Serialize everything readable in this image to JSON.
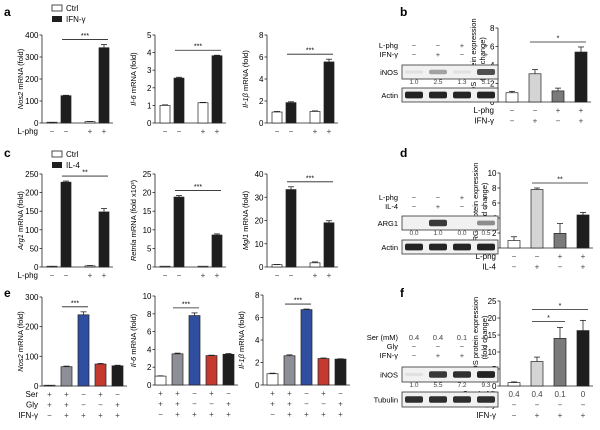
{
  "panels": {
    "a": {
      "letter": "a",
      "legend": [
        {
          "label": "Ctrl",
          "color": "#ffffff"
        },
        {
          "label": "IFN-γ",
          "color": "#1e1e1e"
        }
      ]
    },
    "b": {
      "letter": "b"
    },
    "c": {
      "letter": "c",
      "legend": [
        {
          "label": "Ctrl",
          "color": "#ffffff"
        },
        {
          "label": "IL-4",
          "color": "#1e1e1e"
        }
      ]
    },
    "d": {
      "letter": "d"
    },
    "e": {
      "letter": "e"
    },
    "f": {
      "letter": "f"
    }
  },
  "blots": {
    "b": {
      "cond_rows": [
        {
          "label": "L-phg",
          "vals": [
            "−",
            "−",
            "+",
            "+"
          ]
        },
        {
          "label": "IFN-γ",
          "vals": [
            "−",
            "+",
            "−",
            "+"
          ]
        }
      ],
      "bands": [
        {
          "label": "iNOS",
          "intensity": [
            0.05,
            0.35,
            0.05,
            0.75
          ]
        },
        {
          "label": "Actin",
          "intensity": [
            0.95,
            0.95,
            0.95,
            0.95
          ]
        }
      ],
      "quant": [
        "1.0",
        "2.5",
        "1.3",
        "5.1"
      ]
    },
    "d": {
      "cond_rows": [
        {
          "label": "L-phg",
          "vals": [
            "−",
            "−",
            "+",
            "+"
          ]
        },
        {
          "label": "IL-4",
          "vals": [
            "−",
            "+",
            "−",
            "+"
          ]
        }
      ],
      "bands": [
        {
          "label": "ARG1",
          "intensity": [
            0.0,
            0.85,
            0.0,
            0.45
          ]
        },
        {
          "label": "Actin",
          "intensity": [
            0.95,
            0.95,
            0.95,
            0.95
          ]
        }
      ],
      "quant": [
        "0.0",
        "1.0",
        "0.0",
        "0.5"
      ]
    },
    "f": {
      "cond_rows": [
        {
          "label": "Ser (mM)",
          "vals": [
            "0.4",
            "0.4",
            "0.1",
            "0"
          ]
        },
        {
          "label": "Gly",
          "vals": [
            "−",
            "−",
            "−",
            "−"
          ]
        },
        {
          "label": "IFN-γ",
          "vals": [
            "−",
            "+",
            "+",
            "+"
          ]
        }
      ],
      "bands": [
        {
          "label": "iNOS",
          "intensity": [
            0.05,
            0.85,
            0.9,
            0.95
          ]
        },
        {
          "label": "Tubulin",
          "intensity": [
            0.9,
            0.9,
            0.9,
            0.9
          ]
        }
      ],
      "quant": [
        "1.0",
        "5.5",
        "7.2",
        "9.3"
      ]
    }
  },
  "chart_data": [
    {
      "id": "a1",
      "panel": "a",
      "type": "bar",
      "ylabel": "Nos2 mRNA (fold)",
      "ylabel_italic": "Nos2",
      "ylabel_rest": " mRNA (fold)",
      "ylim": [
        0,
        400
      ],
      "ticks": [
        0,
        100,
        200,
        300,
        400
      ],
      "values": [
        1,
        124,
        6,
        342
      ],
      "errors": [
        0.5,
        2,
        1,
        15
      ],
      "colors": [
        "#ffffff",
        "#1e1e1e",
        "#ffffff",
        "#1e1e1e"
      ],
      "cond_rows": [
        {
          "label": "L-phg",
          "vals": [
            "−",
            "−",
            "+",
            "+"
          ]
        }
      ],
      "sig": [
        {
          "from": 1,
          "to": 3,
          "label": "***"
        }
      ]
    },
    {
      "id": "a2",
      "panel": "a",
      "type": "bar",
      "ylabel": "Il-6 mRNA (fold)",
      "ylabel_italic": "Il-6",
      "ylabel_rest": " mRNA (fold)",
      "ylim": [
        0,
        5
      ],
      "ticks": [
        0,
        1,
        2,
        3,
        4,
        5
      ],
      "values": [
        1.0,
        2.55,
        1.15,
        3.82
      ],
      "errors": [
        0.03,
        0.05,
        0.02,
        0.03
      ],
      "colors": [
        "#ffffff",
        "#1e1e1e",
        "#ffffff",
        "#1e1e1e"
      ],
      "cond_rows": [
        {
          "label": "",
          "vals": [
            "−",
            "−",
            "+",
            "+"
          ]
        }
      ],
      "sig": [
        {
          "from": 1,
          "to": 3,
          "label": "***"
        }
      ]
    },
    {
      "id": "a3",
      "panel": "a",
      "type": "bar",
      "ylabel": "Il-1β mRNA (fold)",
      "ylabel_italic": "Il-1β",
      "ylabel_rest": " mRNA (fold)",
      "ylim": [
        0,
        8
      ],
      "ticks": [
        0,
        2,
        4,
        6,
        8
      ],
      "values": [
        1.0,
        1.85,
        1.05,
        5.55
      ],
      "errors": [
        0.05,
        0.08,
        0.05,
        0.25
      ],
      "colors": [
        "#ffffff",
        "#1e1e1e",
        "#ffffff",
        "#1e1e1e"
      ],
      "cond_rows": [
        {
          "label": "",
          "vals": [
            "−",
            "−",
            "+",
            "+"
          ]
        }
      ],
      "sig": [
        {
          "from": 1,
          "to": 3,
          "label": "***"
        }
      ]
    },
    {
      "id": "b1",
      "panel": "b",
      "type": "bar",
      "ylabel": "iNOS protein expression (fold change)",
      "ylabel_lines": [
        "iNOS protein expression",
        "(fold change)"
      ],
      "ylim": [
        0,
        8
      ],
      "ticks": [
        0,
        2,
        4,
        6,
        8
      ],
      "values": [
        1.0,
        3.05,
        1.2,
        5.4
      ],
      "errors": [
        0.15,
        0.45,
        0.3,
        0.55
      ],
      "colors": [
        "#ffffff",
        "#d4d4d4",
        "#7a7a7a",
        "#1e1e1e"
      ],
      "cond_rows": [
        {
          "label": "L-phg",
          "vals": [
            "−",
            "−",
            "+",
            "+"
          ]
        },
        {
          "label": "IFN-γ",
          "vals": [
            "−",
            "+",
            "−",
            "+"
          ]
        }
      ],
      "sig": [
        {
          "from": 1,
          "to": 3,
          "label": "*"
        }
      ]
    },
    {
      "id": "c1",
      "panel": "c",
      "type": "bar",
      "ylabel": "Arg1 mRNA (fold)",
      "ylabel_italic": "Arg1",
      "ylabel_rest": " mRNA (fold)",
      "ylim": [
        0,
        250
      ],
      "ticks": [
        0,
        50,
        100,
        150,
        200,
        250
      ],
      "values": [
        1,
        228,
        3,
        148
      ],
      "errors": [
        0.5,
        3,
        1,
        9
      ],
      "colors": [
        "#ffffff",
        "#1e1e1e",
        "#ffffff",
        "#1e1e1e"
      ],
      "cond_rows": [
        {
          "label": "L-phg",
          "vals": [
            "−",
            "−",
            "+",
            "+"
          ]
        }
      ],
      "sig": [
        {
          "from": 1,
          "to": 3,
          "label": "**"
        }
      ]
    },
    {
      "id": "c2",
      "panel": "c",
      "type": "bar",
      "ylabel": "Retnla mRNA (fold x10³)",
      "ylabel_italic": "Retnla",
      "ylabel_rest": " mRNA (fold x10³)",
      "ylim": [
        0,
        25
      ],
      "ticks": [
        0,
        5,
        10,
        15,
        20,
        25
      ],
      "values": [
        0.02,
        18.8,
        0.02,
        8.6
      ],
      "errors": [
        0,
        0.4,
        0,
        0.3
      ],
      "colors": [
        "#ffffff",
        "#1e1e1e",
        "#ffffff",
        "#1e1e1e"
      ],
      "cond_rows": [
        {
          "label": "",
          "vals": [
            "−",
            "−",
            "+",
            "+"
          ]
        }
      ],
      "sig": [
        {
          "from": 1,
          "to": 3,
          "label": "***"
        }
      ]
    },
    {
      "id": "c3",
      "panel": "c",
      "type": "bar",
      "ylabel": "Mgl1 mRNA (fold)",
      "ylabel_italic": "Mgl1",
      "ylabel_rest": " mRNA (fold)",
      "ylim": [
        0,
        40
      ],
      "ticks": [
        0,
        10,
        20,
        30,
        40
      ],
      "values": [
        1.0,
        33.3,
        1.8,
        19.0
      ],
      "errors": [
        0.1,
        1.2,
        0.4,
        0.9
      ],
      "colors": [
        "#ffffff",
        "#1e1e1e",
        "#ffffff",
        "#1e1e1e"
      ],
      "cond_rows": [
        {
          "label": "",
          "vals": [
            "−",
            "−",
            "+",
            "+"
          ]
        }
      ],
      "sig": [
        {
          "from": 1,
          "to": 3,
          "label": "***"
        }
      ]
    },
    {
      "id": "d1",
      "panel": "d",
      "type": "bar",
      "ylabel": "ARG1 protein expression (fold change)",
      "ylabel_lines": [
        "ARG1 protein expression",
        "(fold change)"
      ],
      "ylim": [
        0,
        10
      ],
      "ticks": [
        0,
        2,
        4,
        6,
        8,
        10
      ],
      "values": [
        1.0,
        7.8,
        1.95,
        4.4
      ],
      "errors": [
        0.5,
        0.2,
        1.3,
        0.35
      ],
      "colors": [
        "#ffffff",
        "#d4d4d4",
        "#7a7a7a",
        "#1e1e1e"
      ],
      "cond_rows": [
        {
          "label": "L-phg",
          "vals": [
            "−",
            "−",
            "+",
            "+"
          ]
        },
        {
          "label": "IL-4",
          "vals": [
            "−",
            "+",
            "−",
            "+"
          ]
        }
      ],
      "sig": [
        {
          "from": 1,
          "to": 3,
          "label": "**"
        }
      ]
    },
    {
      "id": "e1",
      "panel": "e",
      "type": "bar",
      "ylabel": "Nos2 mRNA (fold)",
      "ylabel_italic": "Nos2",
      "ylabel_rest": " mRNA (fold)",
      "ylim": [
        0,
        300
      ],
      "ticks": [
        0,
        100,
        200,
        300
      ],
      "values": [
        1,
        65,
        240,
        74,
        68
      ],
      "errors": [
        0.5,
        2,
        10,
        2,
        2
      ],
      "colors": [
        "#ffffff",
        "#8e8e96",
        "#2f4ea0",
        "#c43a2e",
        "#1e1e1e"
      ],
      "cond_rows": [
        {
          "label": "Ser",
          "vals": [
            "+",
            "+",
            "−",
            "+",
            "−"
          ]
        },
        {
          "label": "Gly",
          "vals": [
            "+",
            "+",
            "−",
            "−",
            "+"
          ]
        },
        {
          "label": "IFN-γ",
          "vals": [
            "−",
            "+",
            "+",
            "+",
            "+"
          ]
        }
      ],
      "sig": [
        {
          "from": 1,
          "to": 2,
          "label": "***"
        }
      ]
    },
    {
      "id": "e2",
      "panel": "e",
      "type": "bar",
      "ylabel": "Il-6 mRNA (fold)",
      "ylabel_italic": "Il-6",
      "ylabel_rest": " mRNA (fold)",
      "ylim": [
        0,
        10
      ],
      "ticks": [
        0,
        2,
        4,
        6,
        8,
        10
      ],
      "values": [
        1.0,
        3.5,
        7.8,
        3.3,
        3.45
      ],
      "errors": [
        0.03,
        0.08,
        0.3,
        0.05,
        0.08
      ],
      "colors": [
        "#ffffff",
        "#8e8e96",
        "#2f4ea0",
        "#c43a2e",
        "#1e1e1e"
      ],
      "cond_rows": [
        {
          "label": "",
          "vals": [
            "+",
            "+",
            "−",
            "+",
            "−"
          ]
        },
        {
          "label": "",
          "vals": [
            "+",
            "+",
            "−",
            "−",
            "+"
          ]
        },
        {
          "label": "",
          "vals": [
            "−",
            "+",
            "+",
            "+",
            "+"
          ]
        }
      ],
      "sig": [
        {
          "from": 1,
          "to": 2,
          "label": "***"
        }
      ]
    },
    {
      "id": "e3",
      "panel": "e",
      "type": "bar",
      "ylabel": "Il-1β mRNA (fold)",
      "ylabel_italic": "Il-1β",
      "ylabel_rest": " mRNA (fold)",
      "ylim": [
        0,
        8
      ],
      "ticks": [
        0,
        2,
        4,
        6,
        8
      ],
      "values": [
        1.0,
        2.6,
        6.7,
        2.35,
        2.3
      ],
      "errors": [
        0.05,
        0.08,
        0.05,
        0.05,
        0.03
      ],
      "colors": [
        "#ffffff",
        "#8e8e96",
        "#2f4ea0",
        "#c43a2e",
        "#1e1e1e"
      ],
      "cond_rows": [
        {
          "label": "",
          "vals": [
            "+",
            "+",
            "−",
            "+",
            "−"
          ]
        },
        {
          "label": "",
          "vals": [
            "+",
            "+",
            "−",
            "−",
            "+"
          ]
        },
        {
          "label": "",
          "vals": [
            "−",
            "+",
            "+",
            "+",
            "+"
          ]
        }
      ],
      "sig": [
        {
          "from": 1,
          "to": 2,
          "label": "***"
        }
      ]
    },
    {
      "id": "f1",
      "panel": "f",
      "type": "bar",
      "ylabel": "iNOS protein expression (fold change)",
      "ylabel_lines": [
        "iNOS protein expression",
        "(fold change)"
      ],
      "ylim": [
        0,
        25
      ],
      "ticks": [
        0,
        5,
        10,
        15,
        20,
        25
      ],
      "values": [
        1.0,
        7.2,
        14.0,
        16.3
      ],
      "errors": [
        0.2,
        1.3,
        3.2,
        3.0
      ],
      "colors": [
        "#ffffff",
        "#d4d4d4",
        "#7a7a7a",
        "#1e1e1e"
      ],
      "cond_rows": [
        {
          "label": "Ser (mM)",
          "vals": [
            "0.4",
            "0.4",
            "0.1",
            "0"
          ]
        },
        {
          "label": "Gly",
          "vals": [
            "−",
            "−",
            "−",
            "−"
          ]
        },
        {
          "label": "IFN-γ",
          "vals": [
            "−",
            "+",
            "+",
            "+"
          ]
        }
      ],
      "sig": [
        {
          "from": 1,
          "to": 2,
          "label": "*"
        },
        {
          "from": 1,
          "to": 3,
          "label": "*"
        }
      ]
    }
  ]
}
